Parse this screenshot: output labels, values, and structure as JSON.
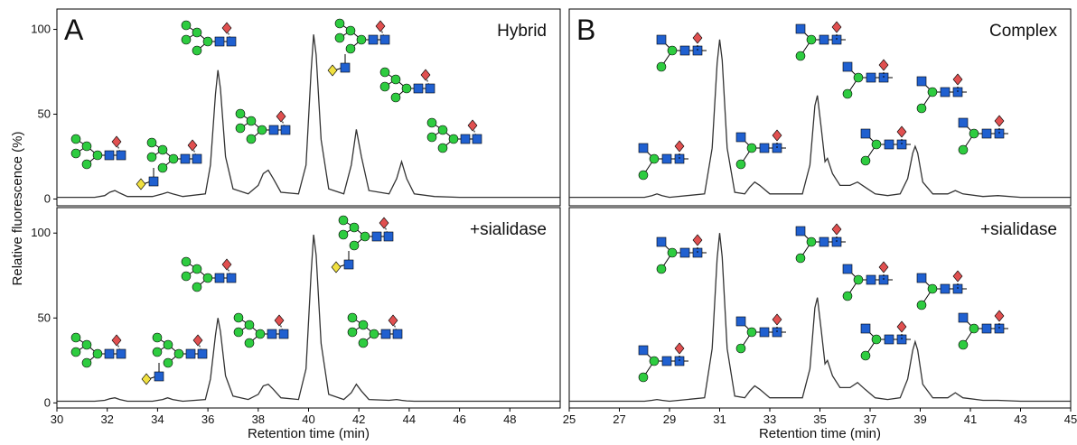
{
  "chart_data": [
    {
      "type": "line",
      "panel": "A",
      "annotation": "Hybrid",
      "y_label": "Relative fluorescence (%)",
      "color": "#333333",
      "xlim": [
        30,
        50
      ],
      "ylim": [
        -4,
        112
      ],
      "yticks": [
        0,
        50,
        100
      ],
      "x": [
        30,
        31.5,
        31.9,
        32.1,
        32.3,
        32.5,
        32.8,
        33.8,
        34.2,
        34.4,
        34.6,
        35,
        35.9,
        36.1,
        36.3,
        36.4,
        36.5,
        36.7,
        37,
        37.6,
        38.0,
        38.2,
        38.4,
        38.6,
        38.9,
        39.6,
        39.9,
        40.1,
        40.2,
        40.3,
        40.5,
        40.8,
        41.4,
        41.7,
        41.9,
        42.1,
        42.4,
        43.2,
        43.5,
        43.7,
        43.9,
        44.2,
        45,
        46,
        48,
        50
      ],
      "values": [
        1,
        1,
        2,
        4,
        5,
        3.5,
        1.5,
        1.5,
        3,
        4,
        3,
        1.5,
        3,
        20,
        62,
        76,
        65,
        25,
        6,
        3,
        8,
        15,
        17,
        12,
        4,
        3,
        20,
        75,
        97,
        85,
        35,
        6,
        3,
        20,
        41,
        25,
        5,
        3,
        12,
        22,
        12,
        3,
        1.5,
        1,
        1,
        1
      ]
    },
    {
      "type": "line",
      "annotation": "+sialidase",
      "x_label": "Retention time (min)",
      "color": "#333333",
      "xlim": [
        30,
        50
      ],
      "ylim": [
        -3,
        115
      ],
      "yticks": [
        0,
        50,
        100
      ],
      "xticks": [
        30,
        32,
        34,
        36,
        38,
        40,
        42,
        44,
        46,
        48
      ],
      "x": [
        30,
        31.5,
        31.9,
        32.1,
        32.3,
        32.5,
        32.8,
        33.8,
        34.2,
        34.4,
        34.6,
        35,
        35.9,
        36.1,
        36.3,
        36.4,
        36.5,
        36.7,
        37,
        37.6,
        38.0,
        38.2,
        38.4,
        38.6,
        38.9,
        39.6,
        39.9,
        40.1,
        40.2,
        40.3,
        40.5,
        40.8,
        41.4,
        41.7,
        41.9,
        42.1,
        42.4,
        43.2,
        43.5,
        43.7,
        43.9,
        44.2,
        45,
        46,
        48,
        50
      ],
      "values": [
        1,
        1,
        1.5,
        2.5,
        3,
        2,
        1,
        1,
        2,
        3,
        2,
        1,
        2,
        14,
        40,
        50,
        42,
        16,
        4,
        2,
        5,
        10,
        11,
        8,
        3,
        2,
        20,
        76,
        99,
        87,
        35,
        5,
        2,
        6,
        11,
        7,
        2,
        1.5,
        2,
        1.5,
        1.2,
        1,
        1,
        1,
        1,
        1
      ]
    },
    {
      "type": "line",
      "panel": "B",
      "annotation": "Complex",
      "color": "#333333",
      "xlim": [
        25,
        45
      ],
      "ylim": [
        -4,
        112
      ],
      "x": [
        25,
        28,
        28.3,
        28.5,
        28.7,
        29,
        30.4,
        30.7,
        30.9,
        31,
        31.1,
        31.3,
        31.6,
        32,
        32.2,
        32.4,
        32.6,
        33,
        34.3,
        34.6,
        34.8,
        34.9,
        35.05,
        35.2,
        35.3,
        35.5,
        35.8,
        36.2,
        36.5,
        36.8,
        37.2,
        37.7,
        38.2,
        38.5,
        38.7,
        38.8,
        38.9,
        39.1,
        39.5,
        40.1,
        40.4,
        40.7,
        41.5,
        42.1,
        43,
        45
      ],
      "values": [
        1,
        1,
        2,
        3,
        2,
        1,
        3,
        30,
        80,
        94,
        82,
        30,
        4,
        3,
        7,
        10,
        8,
        3,
        3,
        20,
        55,
        61,
        42,
        22,
        24,
        15,
        8,
        8,
        10,
        7,
        3,
        2,
        3,
        12,
        27,
        31,
        27,
        10,
        3,
        3,
        5,
        3,
        1.5,
        2,
        1,
        1
      ]
    },
    {
      "type": "line",
      "annotation": "+sialidase",
      "x_label": "Retention time (min)",
      "color": "#333333",
      "xlim": [
        25,
        45
      ],
      "ylim": [
        -3,
        115
      ],
      "xticks": [
        25,
        27,
        29,
        31,
        33,
        35,
        37,
        39,
        41,
        43,
        45
      ],
      "x": [
        25,
        28,
        28.3,
        28.5,
        28.7,
        29,
        30.4,
        30.7,
        30.9,
        31,
        31.1,
        31.3,
        31.6,
        32,
        32.2,
        32.4,
        32.6,
        33,
        34.3,
        34.6,
        34.8,
        34.9,
        35.05,
        35.2,
        35.3,
        35.5,
        35.8,
        36.2,
        36.5,
        36.8,
        37.2,
        37.7,
        38.2,
        38.5,
        38.7,
        38.8,
        38.9,
        39.1,
        39.5,
        40.1,
        40.4,
        40.7,
        41.5,
        42.1,
        43,
        45
      ],
      "values": [
        1,
        1,
        1.5,
        2,
        1.5,
        1,
        3,
        32,
        85,
        100,
        86,
        32,
        4,
        3,
        7,
        10,
        8,
        3,
        3,
        20,
        56,
        62,
        43,
        23,
        25,
        16,
        9,
        9,
        12,
        8,
        3,
        2,
        3,
        14,
        31,
        36,
        31,
        11,
        3,
        3,
        6,
        3,
        1.5,
        1.5,
        1,
        1
      ]
    }
  ]
}
